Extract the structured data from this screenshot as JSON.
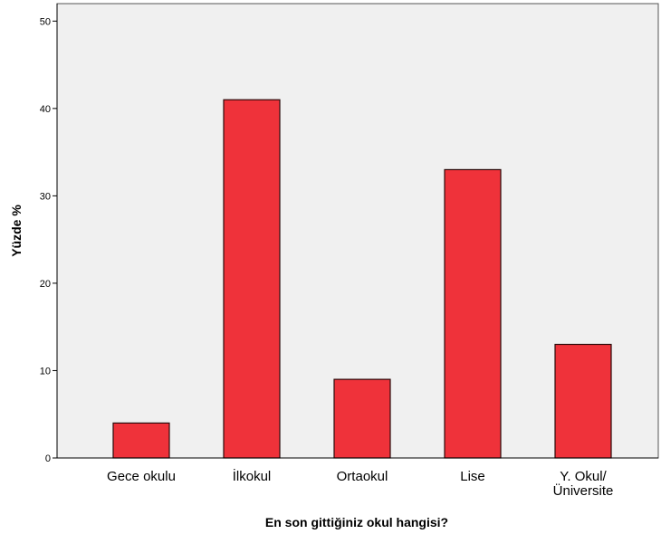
{
  "chart_data": {
    "type": "bar",
    "categories": [
      "Gece okulu",
      "İlkokul",
      "Ortaokul",
      "Lise",
      "Y. Okul/\nÜniversite"
    ],
    "values": [
      4,
      41,
      9,
      33,
      13
    ],
    "xlabel": "En son gittiğiniz okul hangisi?",
    "ylabel": "Yüzde %",
    "ylim": [
      0,
      52
    ],
    "yticks": [
      0,
      10,
      20,
      30,
      40,
      50
    ],
    "grid": false,
    "colors": {
      "bar_fill": "#ef323a",
      "bar_stroke": "#2a0a0a",
      "plot_background": "#f0f0f0",
      "axis": "#000000"
    }
  }
}
